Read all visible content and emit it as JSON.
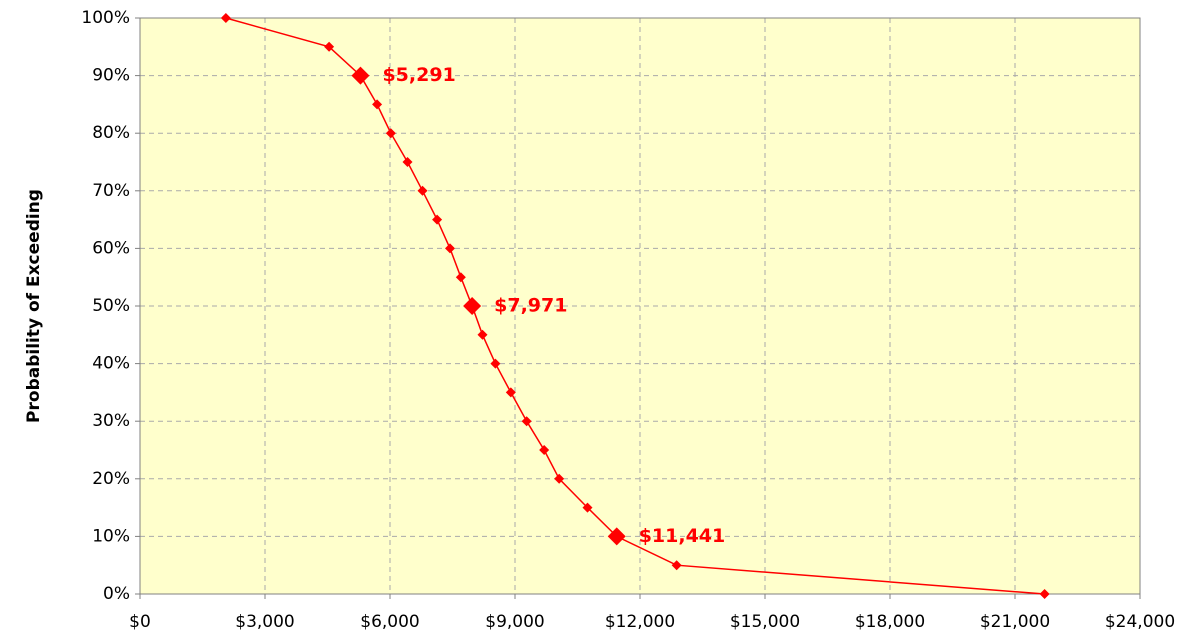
{
  "chart_data": {
    "type": "line",
    "y_label": "Probability of Exceeding",
    "series": [
      {
        "color": "#ff0000",
        "x": [
          2061,
          4538,
          5291,
          5690,
          6020,
          6420,
          6780,
          7130,
          7440,
          7700,
          7971,
          8220,
          8530,
          8900,
          9280,
          9700,
          10060,
          10740,
          11441,
          12880,
          21710
        ],
        "values": [
          100,
          95,
          90,
          85,
          80,
          75,
          70,
          65,
          60,
          55,
          50,
          45,
          40,
          35,
          30,
          25,
          20,
          15,
          10,
          5,
          0
        ]
      }
    ],
    "annotations": [
      {
        "x": 5291,
        "y": 90,
        "label": "$5,291"
      },
      {
        "x": 7971,
        "y": 50,
        "label": "$7,971"
      },
      {
        "x": 11441,
        "y": 10,
        "label": "$11,441"
      }
    ],
    "xlim": [
      0,
      24000
    ],
    "xticks": [
      {
        "value": 0,
        "label": "$0"
      },
      {
        "value": 3000,
        "label": "$3,000"
      },
      {
        "value": 6000,
        "label": "$6,000"
      },
      {
        "value": 9000,
        "label": "$9,000"
      },
      {
        "value": 12000,
        "label": "$12,000"
      },
      {
        "value": 15000,
        "label": "$15,000"
      },
      {
        "value": 18000,
        "label": "$18,000"
      },
      {
        "value": 21000,
        "label": "$21,000"
      },
      {
        "value": 24000,
        "label": "$24,000"
      }
    ],
    "ylim": [
      0,
      100
    ],
    "yticks": [
      {
        "value": 0,
        "label": "0%"
      },
      {
        "value": 10,
        "label": "10%"
      },
      {
        "value": 20,
        "label": "20%"
      },
      {
        "value": 30,
        "label": "30%"
      },
      {
        "value": 40,
        "label": "40%"
      },
      {
        "value": 50,
        "label": "50%"
      },
      {
        "value": 60,
        "label": "60%"
      },
      {
        "value": 70,
        "label": "70%"
      },
      {
        "value": 80,
        "label": "80%"
      },
      {
        "value": 90,
        "label": "90%"
      },
      {
        "value": 100,
        "label": "100%"
      }
    ],
    "grid": true,
    "plot_background": "#ffffcc"
  }
}
